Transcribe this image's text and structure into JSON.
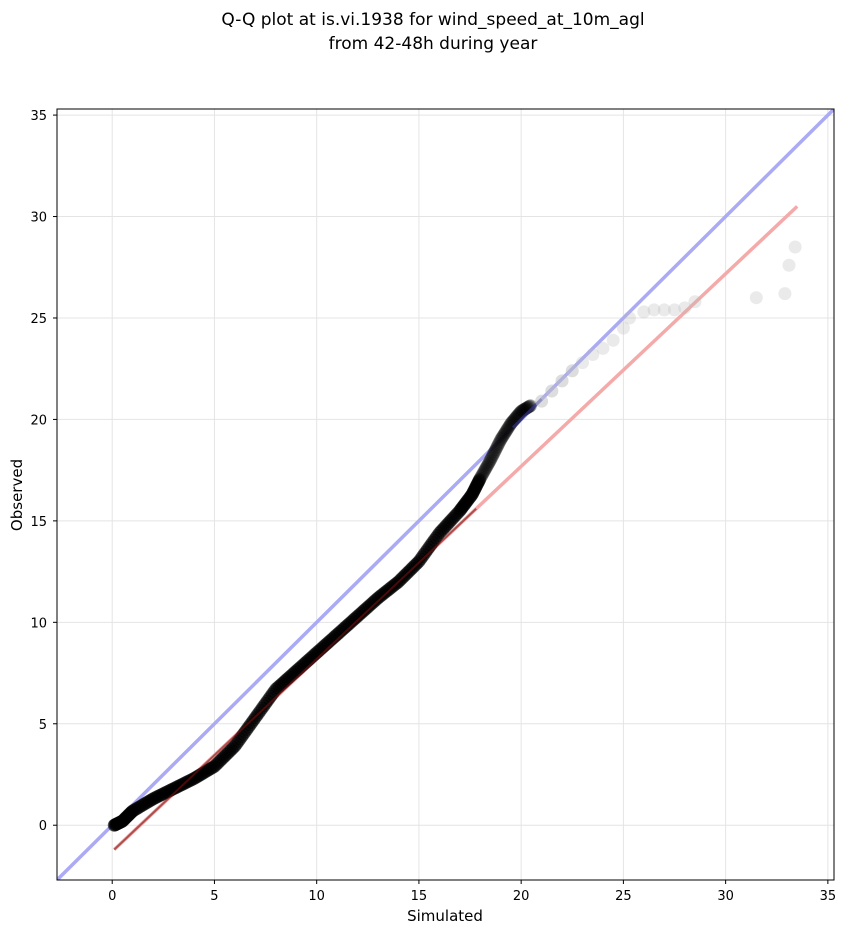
{
  "chart_data": {
    "type": "scatter",
    "title": "Q-Q plot at is.vi.1938 for wind_speed_at_10m_agl",
    "subtitle": "from 42-48h during year",
    "xlabel": "Simulated",
    "ylabel": "Observed",
    "xlim": [
      -2.7,
      35.3
    ],
    "ylim": [
      -2.7,
      35.3
    ],
    "xticks": [
      0,
      5,
      10,
      15,
      20,
      25,
      30,
      35
    ],
    "yticks": [
      0,
      5,
      10,
      15,
      20,
      25,
      30,
      35
    ],
    "grid": true,
    "reference_line": {
      "name": "1:1 line",
      "color": "#aaaaf5",
      "x": [
        -2.7,
        35.3
      ],
      "y": [
        -2.7,
        35.3
      ]
    },
    "fit_line": {
      "name": "fit",
      "color": "#f5aaaa",
      "x": [
        0.1,
        33.5
      ],
      "y": [
        -1.2,
        30.5
      ]
    },
    "dense_curve": {
      "x": [
        0.1,
        0.5,
        1.0,
        2.0,
        3.0,
        4.0,
        5.0,
        6.0,
        7.0,
        8.0,
        9.0,
        10.0,
        11.0,
        12.0,
        13.0,
        14.0,
        15.0,
        16.0,
        17.0,
        17.6,
        18.0,
        18.5,
        19.0,
        19.5,
        20.0,
        20.5
      ],
      "y": [
        0.0,
        0.2,
        0.7,
        1.3,
        1.8,
        2.3,
        2.9,
        3.9,
        5.3,
        6.7,
        7.6,
        8.5,
        9.4,
        10.3,
        11.2,
        12.0,
        13.0,
        14.4,
        15.5,
        16.3,
        17.1,
        18.0,
        19.0,
        19.8,
        20.4,
        20.7
      ],
      "color": "#000000"
    },
    "tail_points": {
      "x": [
        21.0,
        21.5,
        22.0,
        22.5,
        23.0,
        23.5,
        24.0,
        24.5,
        25.0,
        25.3,
        26.0,
        26.5,
        27.0,
        27.5,
        28.0,
        28.5,
        31.5,
        32.9,
        33.1,
        33.4
      ],
      "y": [
        20.9,
        21.4,
        21.9,
        22.4,
        22.8,
        23.2,
        23.5,
        23.9,
        24.5,
        25.0,
        25.3,
        25.4,
        25.4,
        25.4,
        25.5,
        25.8,
        26.0,
        26.2,
        27.6,
        28.5
      ],
      "color": "#bbbbbb"
    }
  }
}
